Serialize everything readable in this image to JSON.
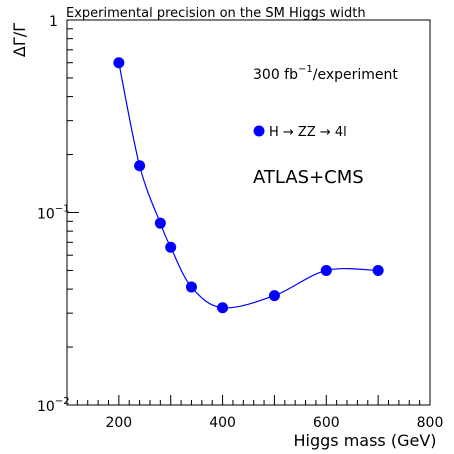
{
  "chart_data": {
    "type": "scatter",
    "title": "Experimental precision on the SM Higgs width",
    "xlabel": "Higgs mass (GeV)",
    "ylabel": "ΔΓ/Γ",
    "xlim": [
      100,
      800
    ],
    "ylim": [
      0.01,
      1
    ],
    "yscale": "log",
    "grid": false,
    "x_ticks": [
      {
        "value": 200,
        "label": "200"
      },
      {
        "value": 400,
        "label": "400"
      },
      {
        "value": 600,
        "label": "600"
      },
      {
        "value": 800,
        "label": "800"
      }
    ],
    "y_ticks": [
      {
        "value": 1,
        "base": "1",
        "exp": ""
      },
      {
        "value": 0.1,
        "base": "10",
        "exp": "−1"
      },
      {
        "value": 0.01,
        "base": "10",
        "exp": "−2"
      }
    ],
    "annotations": {
      "experiment": "ATLAS+CMS",
      "experiment_color": "#ff0000",
      "luminosity": {
        "prefix": "300 fb",
        "exp": "−1",
        "suffix": "/experiment"
      }
    },
    "legend": {
      "position": "middle-right",
      "label": "H → ZZ → 4l"
    },
    "series": [
      {
        "name": "H → ZZ → 4l",
        "color": "#0000ff",
        "x": [
          200,
          240,
          280,
          300,
          340,
          400,
          500,
          600,
          700
        ],
        "y": [
          0.6,
          0.175,
          0.088,
          0.066,
          0.041,
          0.032,
          0.037,
          0.05,
          0.05
        ]
      }
    ]
  }
}
